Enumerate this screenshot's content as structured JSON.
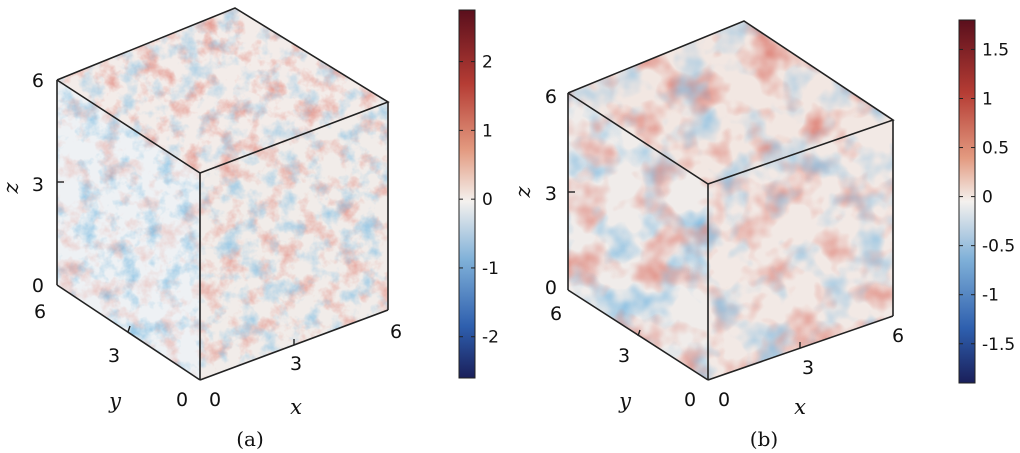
{
  "panels": [
    {
      "caption": "(a)",
      "x_label": "x",
      "y_label": "y",
      "z_label": "z",
      "x_ticks": [
        "0",
        "3",
        "6"
      ],
      "y_ticks": [
        "0",
        "3",
        "6"
      ],
      "z_ticks": [
        "0",
        "3",
        "6"
      ],
      "colorbar": {
        "range": [
          -2.6,
          2.75
        ],
        "ticks": [
          "2",
          "1",
          "0",
          "-1",
          "-2"
        ]
      }
    },
    {
      "caption": "(b)",
      "x_label": "x",
      "y_label": "y",
      "z_label": "z",
      "x_ticks": [
        "0",
        "3",
        "6"
      ],
      "y_ticks": [
        "0",
        "3",
        "6"
      ],
      "z_ticks": [
        "0",
        "3",
        "6"
      ],
      "colorbar": {
        "range": [
          -1.9,
          1.8
        ],
        "ticks": [
          "1.5",
          "1",
          "0.5",
          "0",
          "-0.5",
          "-1",
          "-1.5"
        ]
      }
    }
  ],
  "colormap": [
    "#1a1f5a",
    "#2e5fae",
    "#7fb0d8",
    "#f4f1ee",
    "#e39a80",
    "#b53c34",
    "#5a0f1c"
  ]
}
